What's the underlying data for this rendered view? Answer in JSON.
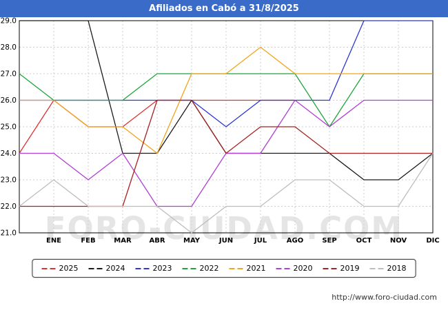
{
  "header": {
    "title": "Afiliados en Cabó a 31/8/2025",
    "bg_color": "#3a6bc8",
    "text_color": "#ffffff"
  },
  "watermark": "FORO-CIUDAD.COM",
  "footer": {
    "url": "http://www.foro-ciudad.com"
  },
  "chart_data": {
    "type": "line",
    "title": "Afiliados en Cabó a 31/8/2025",
    "x_labels": [
      "ENE",
      "FEB",
      "MAR",
      "ABR",
      "MAY",
      "JUN",
      "JUL",
      "AGO",
      "SEP",
      "OCT",
      "NOV",
      "DIC"
    ],
    "xlabel": "",
    "ylabel": "",
    "ylim": [
      21.0,
      29.0
    ],
    "y_tick_step": 1.0,
    "y_tick_labels": [
      "21.0",
      "22.0",
      "23.0",
      "24.0",
      "25.0",
      "26.0",
      "27.0",
      "28.0",
      "29.0"
    ],
    "grid": true,
    "legend_position": "bottom",
    "series": [
      {
        "name": "2025",
        "color": "#e03131",
        "start": 24,
        "values": [
          26,
          25,
          25,
          26,
          26,
          26,
          26,
          26,
          null,
          null,
          null,
          null
        ]
      },
      {
        "name": "2024",
        "color": "#1a1a1a",
        "start": 29,
        "values": [
          29,
          29,
          24,
          24,
          26,
          24,
          24,
          24,
          24,
          23,
          23,
          24
        ]
      },
      {
        "name": "2023",
        "color": "#2b35d8",
        "start": 26,
        "values": [
          26,
          26,
          26,
          26,
          26,
          25,
          26,
          26,
          26,
          29,
          29,
          29
        ]
      },
      {
        "name": "2022",
        "color": "#1ca53c",
        "start": 27,
        "values": [
          26,
          26,
          26,
          27,
          27,
          27,
          27,
          27,
          25,
          27,
          27,
          27
        ]
      },
      {
        "name": "2021",
        "color": "#f2a31b",
        "start": 26,
        "values": [
          26,
          25,
          25,
          24,
          27,
          27,
          28,
          27,
          27,
          27,
          27,
          27
        ]
      },
      {
        "name": "2020",
        "color": "#b03fd4",
        "start": 24,
        "values": [
          24,
          23,
          24,
          22,
          22,
          24,
          24,
          26,
          25,
          26,
          26,
          26
        ]
      },
      {
        "name": "2019",
        "color": "#a52222",
        "start": 22,
        "values": [
          22,
          22,
          22,
          26,
          26,
          24,
          25,
          25,
          24,
          24,
          24,
          24
        ]
      },
      {
        "name": "2018",
        "color": "#bdbdbd",
        "start": 22,
        "values": [
          23,
          22,
          22,
          22,
          21,
          22,
          22,
          23,
          23,
          22,
          22,
          24
        ]
      }
    ]
  }
}
